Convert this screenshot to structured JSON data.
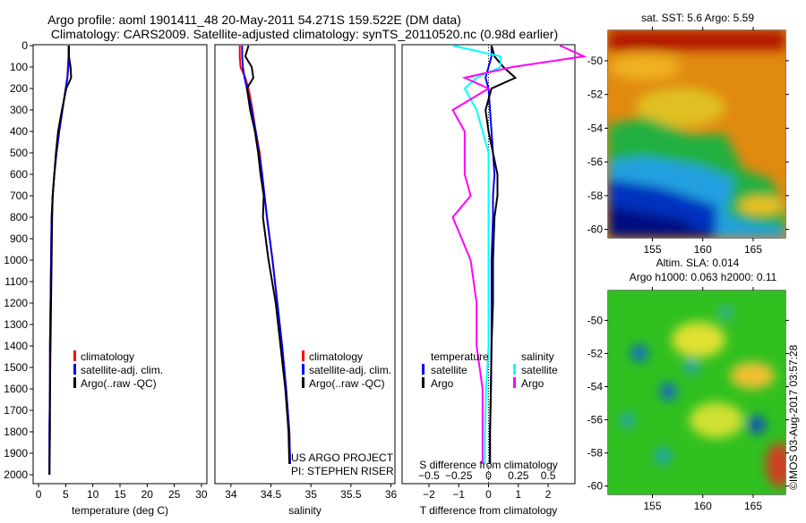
{
  "title_line1": "Argo profile: aoml 1901411_48 20-May-2011 54.271S 159.522E (DM data)",
  "title_line2": "Climatology: CARS2009. Satellite-adjusted climatology: synTS_20110520.nc (0.98d earlier)",
  "colors": {
    "climatology": "#ff0000",
    "satellite": "#0000ff",
    "argo": "#000000",
    "sal_satellite": "#00ffff",
    "sal_argo": "#ff00ff"
  },
  "chart_data": [
    {
      "type": "line",
      "id": "temperature",
      "xlabel": "temperature (deg C)",
      "xlim": [
        -1,
        31
      ],
      "ylim": [
        2050,
        0
      ],
      "xticks": [
        0,
        5,
        10,
        15,
        20,
        25,
        30
      ],
      "yticks": [
        0,
        100,
        200,
        300,
        400,
        500,
        600,
        700,
        800,
        900,
        1000,
        1100,
        1200,
        1300,
        1400,
        1500,
        1600,
        1700,
        1800,
        1900,
        2000
      ],
      "legend": [
        "climatology",
        "satellite-adj. clim.",
        "Argo(..raw -QC)"
      ],
      "depth": [
        0,
        50,
        100,
        150,
        200,
        300,
        400,
        500,
        600,
        700,
        800,
        1000,
        1200,
        1400,
        1600,
        1800,
        2000
      ],
      "series": [
        {
          "name": "climatology",
          "color": "#ff0000",
          "values": [
            5.5,
            5.5,
            5.4,
            5.3,
            5.0,
            4.4,
            3.8,
            3.3,
            2.9,
            2.6,
            2.4,
            2.3,
            2.2,
            2.1,
            2.1,
            2.0,
            2.0
          ]
        },
        {
          "name": "satellite-adj. clim.",
          "color": "#0000ff",
          "values": [
            5.6,
            5.6,
            5.5,
            5.3,
            5.0,
            4.4,
            3.8,
            3.3,
            2.9,
            2.6,
            2.4,
            2.3,
            2.2,
            2.1,
            2.1,
            2.0,
            2.0
          ]
        },
        {
          "name": "Argo(..raw -QC)",
          "color": "#000000",
          "values": [
            5.6,
            5.6,
            5.9,
            6.0,
            5.1,
            4.3,
            3.6,
            3.2,
            2.9,
            2.6,
            2.5,
            2.4,
            2.3,
            2.2,
            2.1,
            2.1,
            2.0
          ]
        }
      ]
    },
    {
      "type": "line",
      "id": "salinity",
      "xlabel": "salinity",
      "xlim": [
        33.8,
        36.05
      ],
      "ylim": [
        2050,
        0
      ],
      "xticks": [
        34,
        34.5,
        35,
        35.5,
        36
      ],
      "legend": [
        "climatology",
        "satellite-adj. clim.",
        "Argo(..raw -QC)"
      ],
      "annotation": [
        "US ARGO PROJECT",
        "PI: STEPHEN RISER"
      ],
      "depth": [
        0,
        50,
        100,
        150,
        200,
        300,
        400,
        500,
        600,
        700,
        800,
        1000,
        1200,
        1400,
        1600,
        1800,
        1950
      ],
      "series": [
        {
          "name": "climatology",
          "color": "#ff0000",
          "values": [
            34.11,
            34.11,
            34.12,
            34.18,
            34.22,
            34.27,
            34.31,
            34.36,
            34.39,
            34.42,
            34.45,
            34.52,
            34.58,
            34.64,
            34.69,
            34.73,
            34.74
          ]
        },
        {
          "name": "satellite-adj. clim.",
          "color": "#0000ff",
          "values": [
            34.14,
            34.14,
            34.15,
            34.17,
            34.2,
            34.26,
            34.31,
            34.35,
            34.39,
            34.42,
            34.45,
            34.52,
            34.58,
            34.64,
            34.69,
            34.73,
            34.74
          ]
        },
        {
          "name": "Argo(..raw -QC)",
          "color": "#000000",
          "values": [
            34.22,
            34.18,
            34.26,
            34.28,
            34.2,
            34.24,
            34.3,
            34.34,
            34.37,
            34.41,
            34.4,
            34.47,
            34.56,
            34.62,
            34.68,
            34.72,
            34.73
          ]
        }
      ]
    },
    {
      "type": "line",
      "id": "difference",
      "xlabel": "T difference from climatology",
      "x2label": "S difference from climatology",
      "xlim": [
        -2.9,
        2.9
      ],
      "ylim": [
        2050,
        0
      ],
      "xticks": [
        -2,
        -1,
        0,
        1,
        2
      ],
      "x2ticks": [
        "-0.5",
        "-0.25",
        "0",
        "0.25",
        "0.5"
      ],
      "legend_t": [
        "temperature",
        "satellite",
        "Argo"
      ],
      "legend_s": [
        "salinity",
        "satellite",
        "Argo"
      ],
      "depth": [
        0,
        50,
        100,
        150,
        200,
        300,
        400,
        500,
        600,
        700,
        800,
        1000,
        1200,
        1400,
        1600,
        1800,
        1950
      ],
      "series": [
        {
          "name": "T satellite",
          "color": "#0000ff",
          "values": [
            0.1,
            0.1,
            0.0,
            -0.1,
            0.0,
            0.05,
            0.1,
            0.15,
            0.2,
            0.15,
            0.15,
            0.1,
            0.1,
            0.1,
            0.08,
            0.05,
            0.05
          ]
        },
        {
          "name": "T Argo",
          "color": "#000000",
          "values": [
            0.1,
            0.2,
            0.5,
            0.9,
            0.1,
            -0.1,
            0.0,
            0.15,
            0.3,
            0.3,
            0.2,
            0.15,
            0.15,
            0.1,
            0.08,
            0.05,
            0.05
          ]
        },
        {
          "name": "S satellite",
          "color": "#00ffff",
          "values": [
            -0.3,
            0.1,
            0.1,
            -0.1,
            -0.2,
            -0.1,
            -0.05,
            0.0,
            0.0,
            0.0,
            0.0,
            0.0,
            0.0,
            0.0,
            -0.02,
            -0.03,
            -0.03
          ]
        },
        {
          "name": "S Argo",
          "color": "#ff00ff",
          "values": [
            0.6,
            0.8,
            0.2,
            -0.2,
            0.0,
            -0.3,
            -0.2,
            -0.2,
            -0.2,
            -0.15,
            -0.3,
            -0.15,
            -0.1,
            -0.1,
            -0.05,
            -0.05,
            -0.05
          ]
        }
      ]
    },
    {
      "type": "heatmap",
      "id": "sst-map",
      "title": "sat. SST: 5.6 Argo: 5.59",
      "xticks": [
        155,
        160,
        165
      ],
      "yticks": [
        -50,
        -52,
        -54,
        -56,
        -58,
        -60
      ],
      "xlim": [
        150.6,
        168.2
      ],
      "ylim": [
        -60.5,
        -48.2
      ],
      "marker": [
        159.522,
        -54.271
      ]
    },
    {
      "type": "heatmap",
      "id": "sla-map",
      "title": "Altim. SLA: 0.014",
      "subtitle": "Argo h1000: 0.063 h2000: 0.11",
      "xticks": [
        155,
        160,
        165
      ],
      "yticks": [
        -50,
        -52,
        -54,
        -56,
        -58,
        -60
      ],
      "xlim": [
        150.6,
        168.2
      ],
      "ylim": [
        -60.5,
        -48.2
      ],
      "marker": [
        159.522,
        -54.271
      ]
    }
  ],
  "credit": "©IMOS 03-Aug-2017 03:57:28"
}
